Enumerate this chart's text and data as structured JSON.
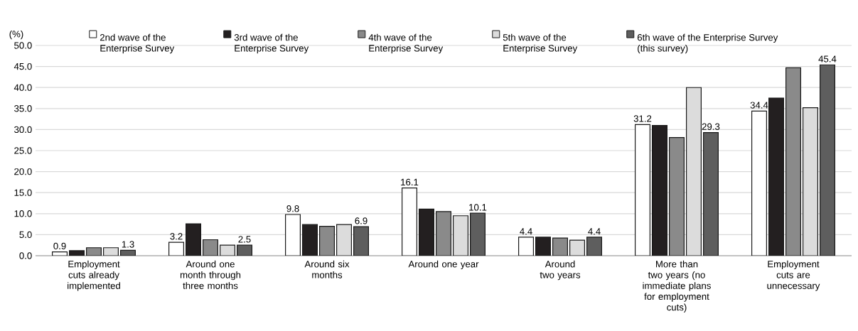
{
  "chart_data": {
    "type": "bar",
    "ylabel": "(%)",
    "categories": [
      "Employment cuts already implemented",
      "Around one month through three months",
      "Around six months",
      "Around one year",
      "Around two years",
      "More than two years (no immediate plans for employment cuts)",
      "Employment cuts are unnecessary"
    ],
    "series": [
      {
        "name": "2nd wave of the Enterprise Survey",
        "color": "#ffffff",
        "values": [
          0.9,
          3.2,
          9.8,
          16.1,
          4.4,
          31.2,
          34.4
        ],
        "value_labels": [
          "0.9",
          "3.2",
          "9.8",
          "16.1",
          "4.4",
          "31.2",
          "34.4"
        ]
      },
      {
        "name": "3rd wave of the Enterprise Survey",
        "color": "#231f20",
        "values": [
          1.2,
          7.6,
          7.4,
          11.1,
          4.4,
          31.0,
          37.5
        ]
      },
      {
        "name": "4th wave of the Enterprise Survey",
        "color": "#8a8a8a",
        "values": [
          1.9,
          3.8,
          7.0,
          10.5,
          4.2,
          28.1,
          44.7
        ]
      },
      {
        "name": "5th wave of the Enterprise Survey",
        "color": "#dcdcdc",
        "values": [
          1.9,
          2.5,
          7.4,
          9.5,
          3.7,
          40.0,
          35.2
        ]
      },
      {
        "name": "6th wave of the Enterprise Survey (this survey)",
        "color": "#5e5e5e",
        "values": [
          1.3,
          2.5,
          6.9,
          10.1,
          4.4,
          29.3,
          45.4
        ],
        "value_labels": [
          "1.3",
          "2.5",
          "6.9",
          "10.1",
          "4.4",
          "29.3",
          "45.4"
        ]
      }
    ],
    "ylim": [
      0,
      50
    ],
    "yticks": [
      {
        "value": 0,
        "label": "0.0"
      },
      {
        "value": 5,
        "label": "5.0"
      },
      {
        "value": 10,
        "label": "10.0"
      },
      {
        "value": 15,
        "label": "15.0"
      },
      {
        "value": 20,
        "label": "20.0"
      },
      {
        "value": 25,
        "label": "25.0"
      },
      {
        "value": 30,
        "label": "30.0"
      },
      {
        "value": 35,
        "label": "35.0"
      },
      {
        "value": 40,
        "label": "40.0"
      },
      {
        "value": 45,
        "label": "45.0"
      },
      {
        "value": 50,
        "label": "50.0"
      }
    ],
    "grid": "y",
    "legend": "top"
  }
}
